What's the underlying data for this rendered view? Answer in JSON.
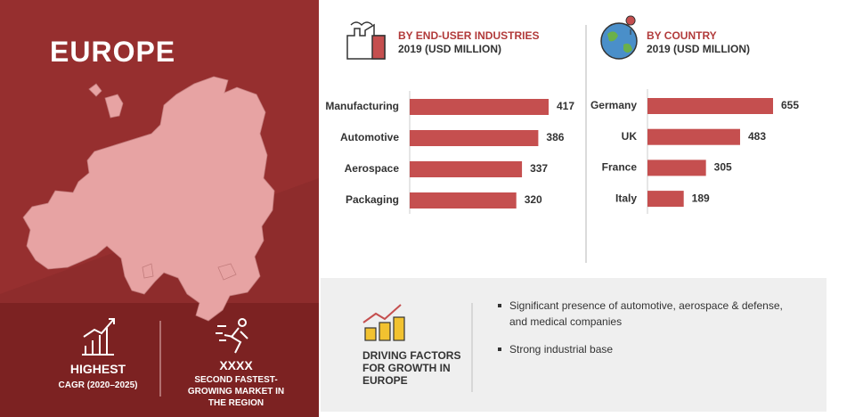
{
  "region": {
    "title": "EUROPE",
    "stats": [
      {
        "headline": "HIGHEST",
        "lines": [
          "CAGR (2020–2025)"
        ]
      },
      {
        "headline": "XXXX",
        "lines": [
          "SECOND FASTEST-",
          "GROWING MARKET IN",
          "THE REGION"
        ]
      }
    ]
  },
  "chart_data": [
    {
      "type": "bar",
      "orientation": "horizontal",
      "title": "BY END-USER INDUSTRIES",
      "subtitle": "2019 (USD MILLION)",
      "categories": [
        "Manufacturing",
        "Automotive",
        "Aerospace",
        "Packaging"
      ],
      "values": [
        417,
        386,
        337,
        320
      ],
      "color": "#c54f4f"
    },
    {
      "type": "bar",
      "orientation": "horizontal",
      "title": "BY COUNTRY",
      "subtitle": "2019 (USD MILLION)",
      "categories": [
        "Germany",
        "UK",
        "France",
        "Italy"
      ],
      "values": [
        655,
        483,
        305,
        189
      ],
      "color": "#c54f4f"
    }
  ],
  "drivers": {
    "title_lines": [
      "DRIVING FACTORS",
      "FOR GROWTH IN",
      "EUROPE"
    ],
    "bullets": [
      "Significant presence of automotive, aerospace & defense, and medical companies",
      "Strong industrial base"
    ]
  }
}
